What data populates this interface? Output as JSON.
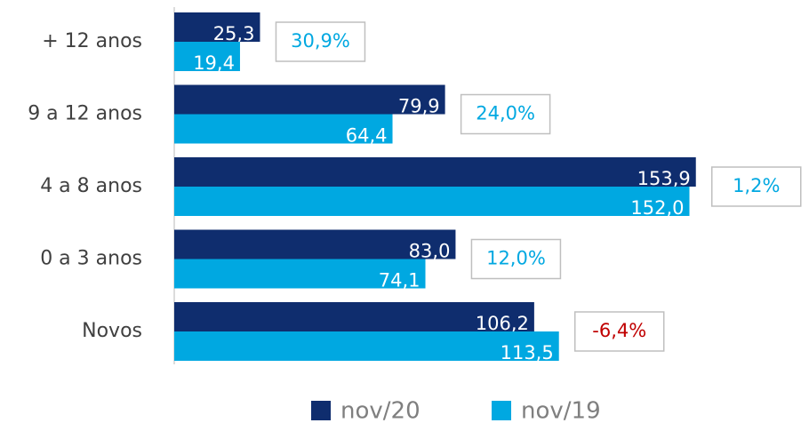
{
  "chart_data": {
    "type": "bar",
    "orientation": "horizontal",
    "categories": [
      "+ 12 anos",
      "9 a 12 anos",
      "4 a 8 anos",
      "0 a 3 anos",
      "Novos"
    ],
    "series": [
      {
        "name": "nov/20",
        "color": "#0f2d6e",
        "values": [
          25.3,
          79.9,
          153.9,
          83.0,
          106.2
        ],
        "value_labels": [
          "25,3",
          "79,9",
          "153,9",
          "83,0",
          "106,2"
        ]
      },
      {
        "name": "nov/19",
        "color": "#00a8e1",
        "values": [
          19.4,
          64.4,
          152.0,
          74.1,
          113.5
        ],
        "value_labels": [
          "19,4",
          "64,4",
          "152,0",
          "74,1",
          "113,5"
        ]
      }
    ],
    "change": {
      "values": [
        30.9,
        24.0,
        1.2,
        12.0,
        -6.4
      ],
      "value_labels": [
        "30,9%",
        "24,0%",
        "1,2%",
        "12,0%",
        "-6,4%"
      ],
      "positive_color": "#00a8e1",
      "negative_color": "#c00000"
    },
    "xlim": [
      0,
      160
    ],
    "legend": "bottom"
  }
}
